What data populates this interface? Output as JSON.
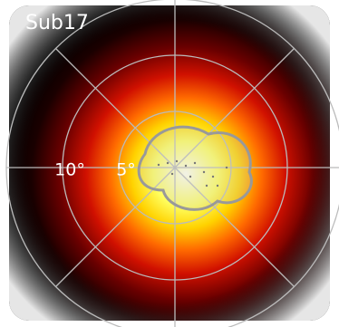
{
  "chart_data": {
    "type": "polar-heatmap",
    "title": "Sub17",
    "rlim": [
      0,
      15
    ],
    "rticks": [
      {
        "value": 5,
        "label": "5°"
      },
      {
        "value": 10,
        "label": "10°"
      }
    ],
    "grid_rings": [
      5,
      10,
      15
    ],
    "grid_angles": [
      0,
      45,
      90,
      135,
      180,
      225,
      270,
      315
    ],
    "grid": true
  }
}
